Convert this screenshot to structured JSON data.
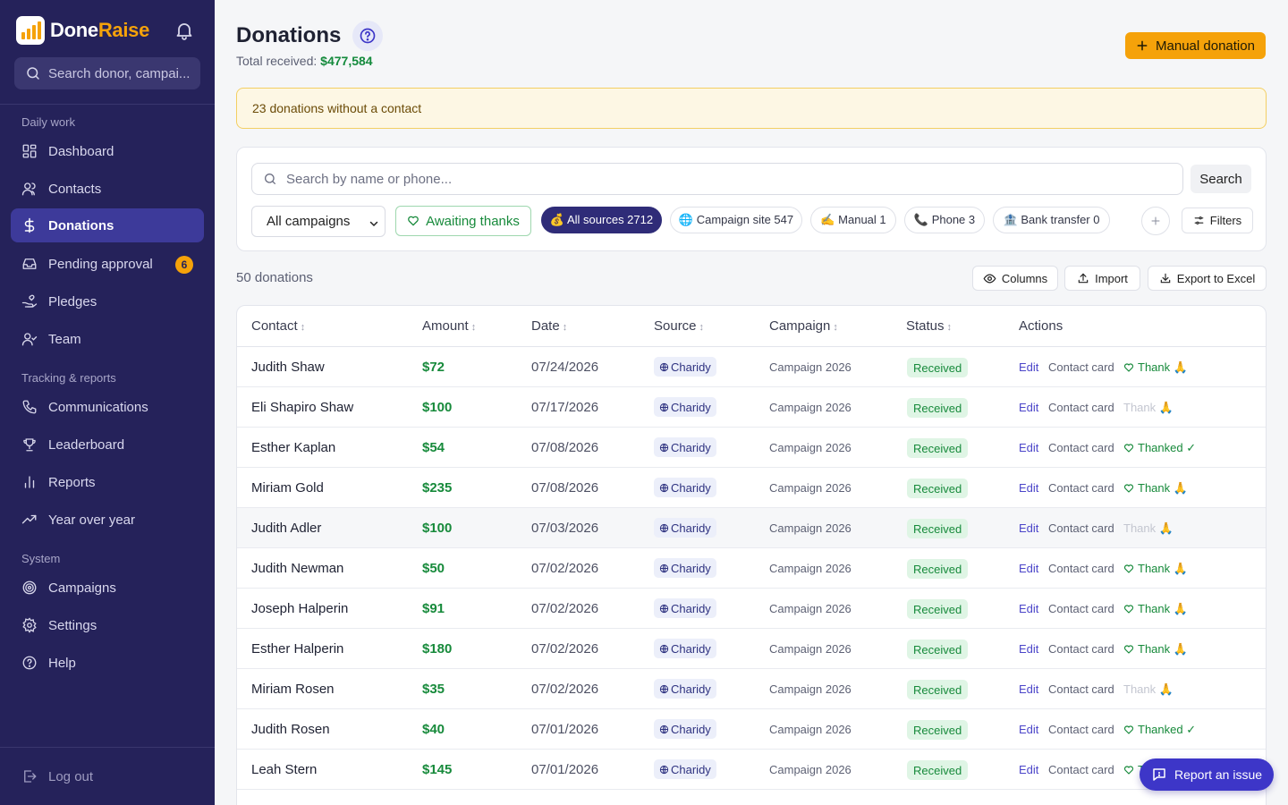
{
  "app": {
    "brand_first": "Done",
    "brand_second": "Raise",
    "brand_color": "#f5a20a",
    "sidebar_color": "#25225a"
  },
  "sidebar": {
    "search_placeholder": "Search donor, campai...",
    "sections": [
      {
        "label": "Daily work"
      },
      {
        "label": "Tracking & reports"
      },
      {
        "label": "System"
      }
    ],
    "items": [
      {
        "label": "Dashboard",
        "icon": "grid-icon"
      },
      {
        "label": "Contacts",
        "icon": "users-icon"
      },
      {
        "label": "Donations",
        "icon": "dollar-icon",
        "active": true
      },
      {
        "label": "Pending approval",
        "icon": "inbox-icon",
        "badge": "6"
      },
      {
        "label": "Pledges",
        "icon": "hand-heart-icon"
      },
      {
        "label": "Team",
        "icon": "user-check-icon"
      },
      {
        "label": "Communications",
        "icon": "phone-icon"
      },
      {
        "label": "Leaderboard",
        "icon": "trophy-icon"
      },
      {
        "label": "Reports",
        "icon": "bar-chart-icon"
      },
      {
        "label": "Year over year",
        "icon": "trending-up-icon"
      },
      {
        "label": "Campaigns",
        "icon": "target-icon"
      },
      {
        "label": "Settings",
        "icon": "gear-icon"
      },
      {
        "label": "Help",
        "icon": "help-circle-icon"
      }
    ],
    "logout_label": "Log out"
  },
  "header": {
    "title": "Donations",
    "total_label": "Total received:",
    "total_value": "$477,584",
    "manual_button": "Manual donation"
  },
  "alert": {
    "text": "23 donations without a contact"
  },
  "filters": {
    "search_placeholder": "Search by name or phone...",
    "search_button": "Search",
    "campaign_select": "All campaigns",
    "awaiting_thanks": "Awaiting thanks",
    "chips": [
      {
        "label": "💰 All sources 2712",
        "active": true
      },
      {
        "label": "🌐 Campaign site 547"
      },
      {
        "label": "✍️ Manual 1"
      },
      {
        "label": "📞 Phone 3"
      },
      {
        "label": "🏦 Bank transfer 0"
      }
    ],
    "filters_button": "Filters"
  },
  "toolbar": {
    "count": "50 donations",
    "columns_button": "Columns",
    "import_button": "Import",
    "export_button": "Export to Excel"
  },
  "table": {
    "columns": [
      "Contact",
      "Amount",
      "Date",
      "Source",
      "Campaign",
      "Status",
      "Actions"
    ],
    "sort_glyph": "↕",
    "action_edit": "Edit",
    "action_card": "Contact card",
    "rows": [
      {
        "contact": "Judith Shaw",
        "amount": "$72",
        "date": "07/24/2026",
        "source": "Charidy",
        "campaign": "Campaign 2026",
        "status": "Received",
        "thank": "Thank 🙏",
        "thank_state": "active"
      },
      {
        "contact": "Eli Shapiro Shaw",
        "amount": "$100",
        "date": "07/17/2026",
        "source": "Charidy",
        "campaign": "Campaign 2026",
        "status": "Received",
        "thank": "Thank 🙏",
        "thank_state": "disabled"
      },
      {
        "contact": "Esther Kaplan",
        "amount": "$54",
        "date": "07/08/2026",
        "source": "Charidy",
        "campaign": "Campaign 2026",
        "status": "Received",
        "thank": "Thanked ✓",
        "thank_state": "done"
      },
      {
        "contact": "Miriam Gold",
        "amount": "$235",
        "date": "07/08/2026",
        "source": "Charidy",
        "campaign": "Campaign 2026",
        "status": "Received",
        "thank": "Thank 🙏",
        "thank_state": "active"
      },
      {
        "contact": "Judith Adler",
        "amount": "$100",
        "date": "07/03/2026",
        "source": "Charidy",
        "campaign": "Campaign 2026",
        "status": "Received",
        "thank": "Thank 🙏",
        "thank_state": "disabled"
      },
      {
        "contact": "Judith Newman",
        "amount": "$50",
        "date": "07/02/2026",
        "source": "Charidy",
        "campaign": "Campaign 2026",
        "status": "Received",
        "thank": "Thank 🙏",
        "thank_state": "active"
      },
      {
        "contact": "Joseph Halperin",
        "amount": "$91",
        "date": "07/02/2026",
        "source": "Charidy",
        "campaign": "Campaign 2026",
        "status": "Received",
        "thank": "Thank 🙏",
        "thank_state": "active"
      },
      {
        "contact": "Esther Halperin",
        "amount": "$180",
        "date": "07/02/2026",
        "source": "Charidy",
        "campaign": "Campaign 2026",
        "status": "Received",
        "thank": "Thank 🙏",
        "thank_state": "active"
      },
      {
        "contact": "Miriam Rosen",
        "amount": "$35",
        "date": "07/02/2026",
        "source": "Charidy",
        "campaign": "Campaign 2026",
        "status": "Received",
        "thank": "Thank 🙏",
        "thank_state": "disabled"
      },
      {
        "contact": "Judith Rosen",
        "amount": "$40",
        "date": "07/01/2026",
        "source": "Charidy",
        "campaign": "Campaign 2026",
        "status": "Received",
        "thank": "Thanked ✓",
        "thank_state": "done"
      },
      {
        "contact": "Leah Stern",
        "amount": "$145",
        "date": "07/01/2026",
        "source": "Charidy",
        "campaign": "Campaign 2026",
        "status": "Received",
        "thank": "Thank 🙏",
        "thank_state": "active"
      }
    ]
  },
  "report_issue": "Report an issue"
}
